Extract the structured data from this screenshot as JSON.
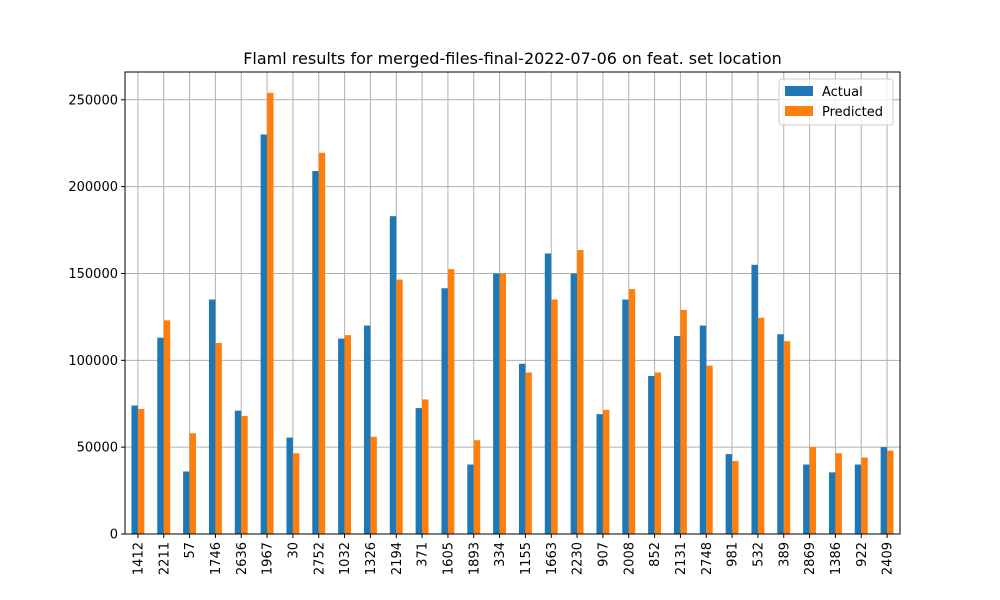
{
  "chart_data": {
    "type": "bar",
    "title": "Flaml results for merged-files-final-2022-07-06 on feat. set location",
    "xlabel": "",
    "ylabel": "",
    "categories": [
      "1412",
      "2211",
      "57",
      "1746",
      "2636",
      "1967",
      "30",
      "2752",
      "1032",
      "1326",
      "2194",
      "371",
      "1605",
      "1893",
      "334",
      "1155",
      "1663",
      "2230",
      "907",
      "2008",
      "852",
      "2131",
      "2748",
      "981",
      "532",
      "389",
      "2869",
      "1386",
      "922",
      "2409"
    ],
    "series": [
      {
        "name": "Actual",
        "color": "#1f77b4",
        "values": [
          74000,
          113000,
          36000,
          135000,
          71000,
          230000,
          55500,
          209000,
          112500,
          120000,
          183000,
          72500,
          141500,
          40000,
          150000,
          98000,
          161500,
          150000,
          69000,
          135000,
          91000,
          114000,
          120000,
          46000,
          155000,
          115000,
          40000,
          35500,
          40000,
          50000
        ]
      },
      {
        "name": "Predicted",
        "color": "#ff7f0e",
        "values": [
          72000,
          123000,
          58000,
          110000,
          68000,
          254000,
          46500,
          219500,
          114500,
          56000,
          146500,
          77500,
          152500,
          54000,
          150000,
          93000,
          135000,
          163500,
          71500,
          141000,
          93000,
          129000,
          97000,
          42000,
          124500,
          111000,
          50000,
          46500,
          44000,
          48000
        ]
      }
    ],
    "ylim": [
      0,
      266000
    ],
    "yticks": [
      0,
      50000,
      100000,
      150000,
      200000,
      250000
    ],
    "ytick_labels": [
      "0",
      "50000",
      "100000",
      "150000",
      "200000",
      "250000"
    ],
    "grid": true,
    "legend_position": "top-right"
  }
}
